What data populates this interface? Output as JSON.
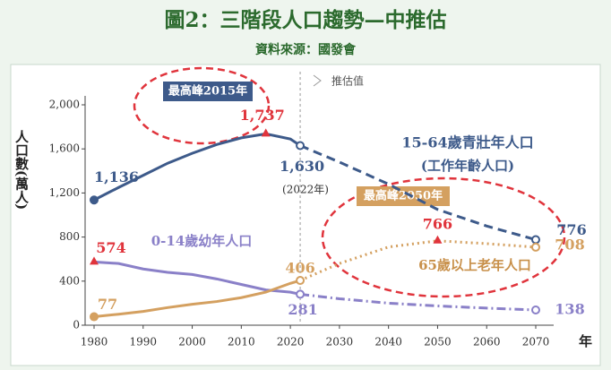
{
  "chart_data": {
    "type": "line",
    "title": "圖2：三階段人口趨勢—中推估",
    "subtitle": "資料來源：國發會",
    "y_label": "人口數(萬人)",
    "x_label": "年",
    "x": [
      1980,
      1985,
      1990,
      1995,
      2000,
      2005,
      2010,
      2015,
      2020,
      2022,
      2030,
      2040,
      2050,
      2060,
      2070
    ],
    "projection_start": 2022,
    "series": [
      {
        "name": "15-64歲青壯年人口",
        "color": "#3d5a8a",
        "line_style": "dashed",
        "values": [
          1136,
          1250,
          1360,
          1470,
          1560,
          1640,
          1700,
          1737,
          1690,
          1630,
          1480,
          1280,
          1050,
          900,
          776
        ],
        "value_labels": [
          "1,136",
          null,
          null,
          null,
          null,
          null,
          null,
          "1,737",
          null,
          "1,630",
          null,
          null,
          null,
          null,
          "776"
        ]
      },
      {
        "name": "0-14歲幼年人口",
        "color": "#8a80c8",
        "line_style": "dashdot",
        "values": [
          574,
          560,
          510,
          480,
          460,
          420,
          370,
          320,
          300,
          281,
          240,
          200,
          175,
          155,
          138
        ],
        "value_labels": [
          "574",
          null,
          null,
          null,
          null,
          null,
          null,
          null,
          null,
          "281",
          null,
          null,
          null,
          null,
          "138"
        ]
      },
      {
        "name": "65歲以上老年人口",
        "color": "#d4a060",
        "line_style": "dotted",
        "values": [
          77,
          100,
          125,
          160,
          190,
          215,
          250,
          300,
          380,
          406,
          560,
          710,
          766,
          740,
          708
        ],
        "value_labels": [
          "77",
          null,
          null,
          null,
          null,
          null,
          null,
          null,
          null,
          "406",
          null,
          null,
          "766",
          null,
          "708"
        ]
      }
    ],
    "peak_color": "#e0343c",
    "annotations": [
      "最高峰2015年",
      "推估值",
      "(2022年)",
      "(工作年齡人口)",
      "最高峰2050年"
    ],
    "xlim": [
      1980,
      2070
    ],
    "xticks": [
      1980,
      1990,
      2000,
      2010,
      2020,
      2030,
      2040,
      2050,
      2060,
      2070
    ],
    "ylim": [
      0,
      2000
    ],
    "yticks": [
      0,
      400,
      800,
      {
        "value": 1200,
        "label": "1,200"
      },
      {
        "value": 1600,
        "label": "1,600"
      },
      {
        "value": 2000,
        "label": "2,000"
      }
    ],
    "grid": false
  }
}
